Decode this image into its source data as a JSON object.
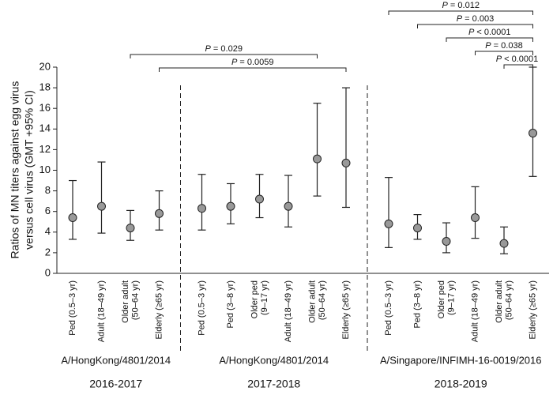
{
  "chart_data": {
    "type": "errorbar",
    "y_label": [
      "Ratios of MN titers against egg virus",
      "versus cell virus (GMT +95% CI)"
    ],
    "ylim": [
      0,
      20
    ],
    "yticks": [
      0,
      2,
      4,
      6,
      8,
      10,
      12,
      14,
      16,
      18,
      20
    ],
    "color": "#999999",
    "groups": [
      {
        "strain": "A/HongKong/4801/2014",
        "season": "2016-2017",
        "categories": [
          "Ped (0.5–3 yr)",
          "Adult (18–49 yr)",
          "Older adult (50–64 yr)",
          "Elderly (≥65 yr)"
        ],
        "values": [
          5.4,
          6.5,
          4.4,
          5.8
        ],
        "lower": [
          3.3,
          3.9,
          3.2,
          4.2
        ],
        "upper": [
          9.0,
          10.8,
          6.1,
          8.0
        ]
      },
      {
        "strain": "A/HongKong/4801/2014",
        "season": "2017-2018",
        "categories": [
          "Ped (0.5–3 yr)",
          "Ped (3–8 yr)",
          "Older ped (9–17 yr)",
          "Adult (18–49 yr)",
          "Older adult (50–64 yr)",
          "Elderly (≥65 yr)"
        ],
        "values": [
          6.3,
          6.5,
          7.2,
          6.5,
          11.1,
          10.7
        ],
        "lower": [
          4.2,
          4.8,
          5.4,
          4.5,
          7.5,
          6.4
        ],
        "upper": [
          9.6,
          8.7,
          9.6,
          9.5,
          16.5,
          18.0
        ]
      },
      {
        "strain": "A/Singapore/INFIMH-16-0019/2016",
        "season": "2018-2019",
        "categories": [
          "Ped (0.5–3 yr)",
          "Ped (3–8 yr)",
          "Older ped (9–17 yr)",
          "Adult (18–49 yr)",
          "Older adult (50–64 yr)",
          "Elderly (≥65 yr)"
        ],
        "values": [
          4.8,
          4.4,
          3.1,
          5.4,
          2.9,
          13.6
        ],
        "lower": [
          2.5,
          3.3,
          2.0,
          3.4,
          1.9,
          9.4
        ],
        "upper": [
          9.3,
          5.7,
          4.9,
          8.4,
          4.5,
          20.0
        ]
      }
    ],
    "comparisons": [
      {
        "label": "P = 0.012",
        "between": [
          10,
          15
        ]
      },
      {
        "label": "P = 0.003",
        "between": [
          11,
          15
        ]
      },
      {
        "label": "P < 0.0001",
        "between": [
          12,
          15
        ]
      },
      {
        "label": "P = 0.038",
        "between": [
          13,
          15
        ]
      },
      {
        "label": "P < 0.0001",
        "between": [
          14,
          15
        ]
      },
      {
        "label": "P = 0.029",
        "between": [
          2,
          8
        ]
      },
      {
        "label": "P = 0.0059",
        "between": [
          3,
          9
        ]
      }
    ]
  }
}
